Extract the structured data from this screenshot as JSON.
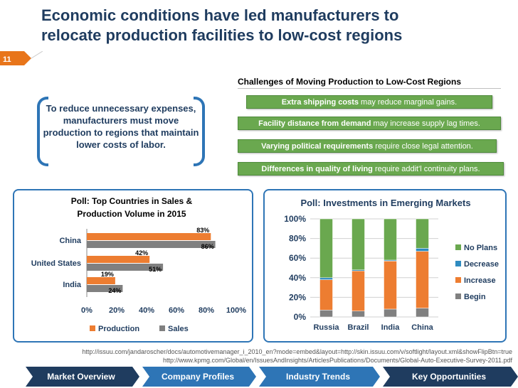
{
  "title": {
    "line1": "Economic conditions have led manufacturers to",
    "line2": "relocate production facilities to low-cost regions"
  },
  "slide_number": "11",
  "quote": "To reduce unnecessary expenses, manufacturers must move production to regions that maintain lower costs of labor.",
  "challenges": {
    "heading": "Challenges of Moving Production to Low-Cost Regions",
    "items": [
      {
        "bold": "Extra shipping costs",
        "rest": " may reduce marginal gains."
      },
      {
        "bold": "Facility distance from demand",
        "rest": " may increase supply lag times."
      },
      {
        "bold": "Varying political requirements",
        "rest": " require close legal attention."
      },
      {
        "bold": "Differences in quality of living",
        "rest": " require addit'l continuity plans."
      }
    ]
  },
  "left_chart_title_1": "Poll: Top Countries in Sales &",
  "left_chart_title_2": "Production Volume in 2015",
  "right_chart_title": "Poll: Investments in Emerging Markets",
  "chart_data": [
    {
      "type": "bar",
      "orientation": "horizontal",
      "categories": [
        "China",
        "United States",
        "India"
      ],
      "series": [
        {
          "name": "Production",
          "values": [
            83,
            42,
            19
          ],
          "color": "#ed7d31"
        },
        {
          "name": "Sales",
          "values": [
            86,
            51,
            24
          ],
          "color": "#808080"
        }
      ],
      "value_labels": {
        "Production": [
          "83%",
          "42%",
          "19%"
        ],
        "Sales": [
          "86%",
          "51%",
          "24%"
        ]
      },
      "xticks": [
        "0%",
        "20%",
        "40%",
        "60%",
        "80%",
        "100%"
      ],
      "xlim": [
        0,
        100
      ],
      "legend": "bottom"
    },
    {
      "type": "bar",
      "stacked": true,
      "categories": [
        "Russia",
        "Brazil",
        "India",
        "China"
      ],
      "series": [
        {
          "name": "Begin",
          "values": [
            7,
            6,
            8,
            9
          ],
          "color": "#808080"
        },
        {
          "name": "Increase",
          "values": [
            31,
            41,
            49,
            58
          ],
          "color": "#ed7d31"
        },
        {
          "name": "Decrease",
          "values": [
            2,
            1,
            1,
            3
          ],
          "color": "#2e8bc0"
        },
        {
          "name": "No Plans",
          "values": [
            60,
            52,
            42,
            30
          ],
          "color": "#6aa84f"
        }
      ],
      "yticks": [
        "0%",
        "20%",
        "40%",
        "60%",
        "80%",
        "100%"
      ],
      "ylim": [
        0,
        100
      ],
      "legend": "right"
    }
  ],
  "sources": {
    "line1": "http://issuu.com/jandaroscher/docs/automotivemanager_i_2010_en?mode=embed&layout=http://skin.issuu.com/v/softlight/layout.xml&showFlipBtn=true",
    "line2": "http://www.kpmg.com/Global/en/IssuesAndInsights/ArticlesPublications/Documents/Global-Auto-Executive-Survey-2011.pdf"
  },
  "nav": {
    "items": [
      {
        "label": "Market Overview"
      },
      {
        "label": "Company Profiles"
      },
      {
        "label": "Industry Trends"
      },
      {
        "label": "Key Opportunities"
      }
    ]
  },
  "colors": {
    "navy": "#1f3c5f",
    "green": "#6aa84f",
    "orange": "#ed7d31",
    "blue": "#2e75b6",
    "gray": "#808080"
  }
}
